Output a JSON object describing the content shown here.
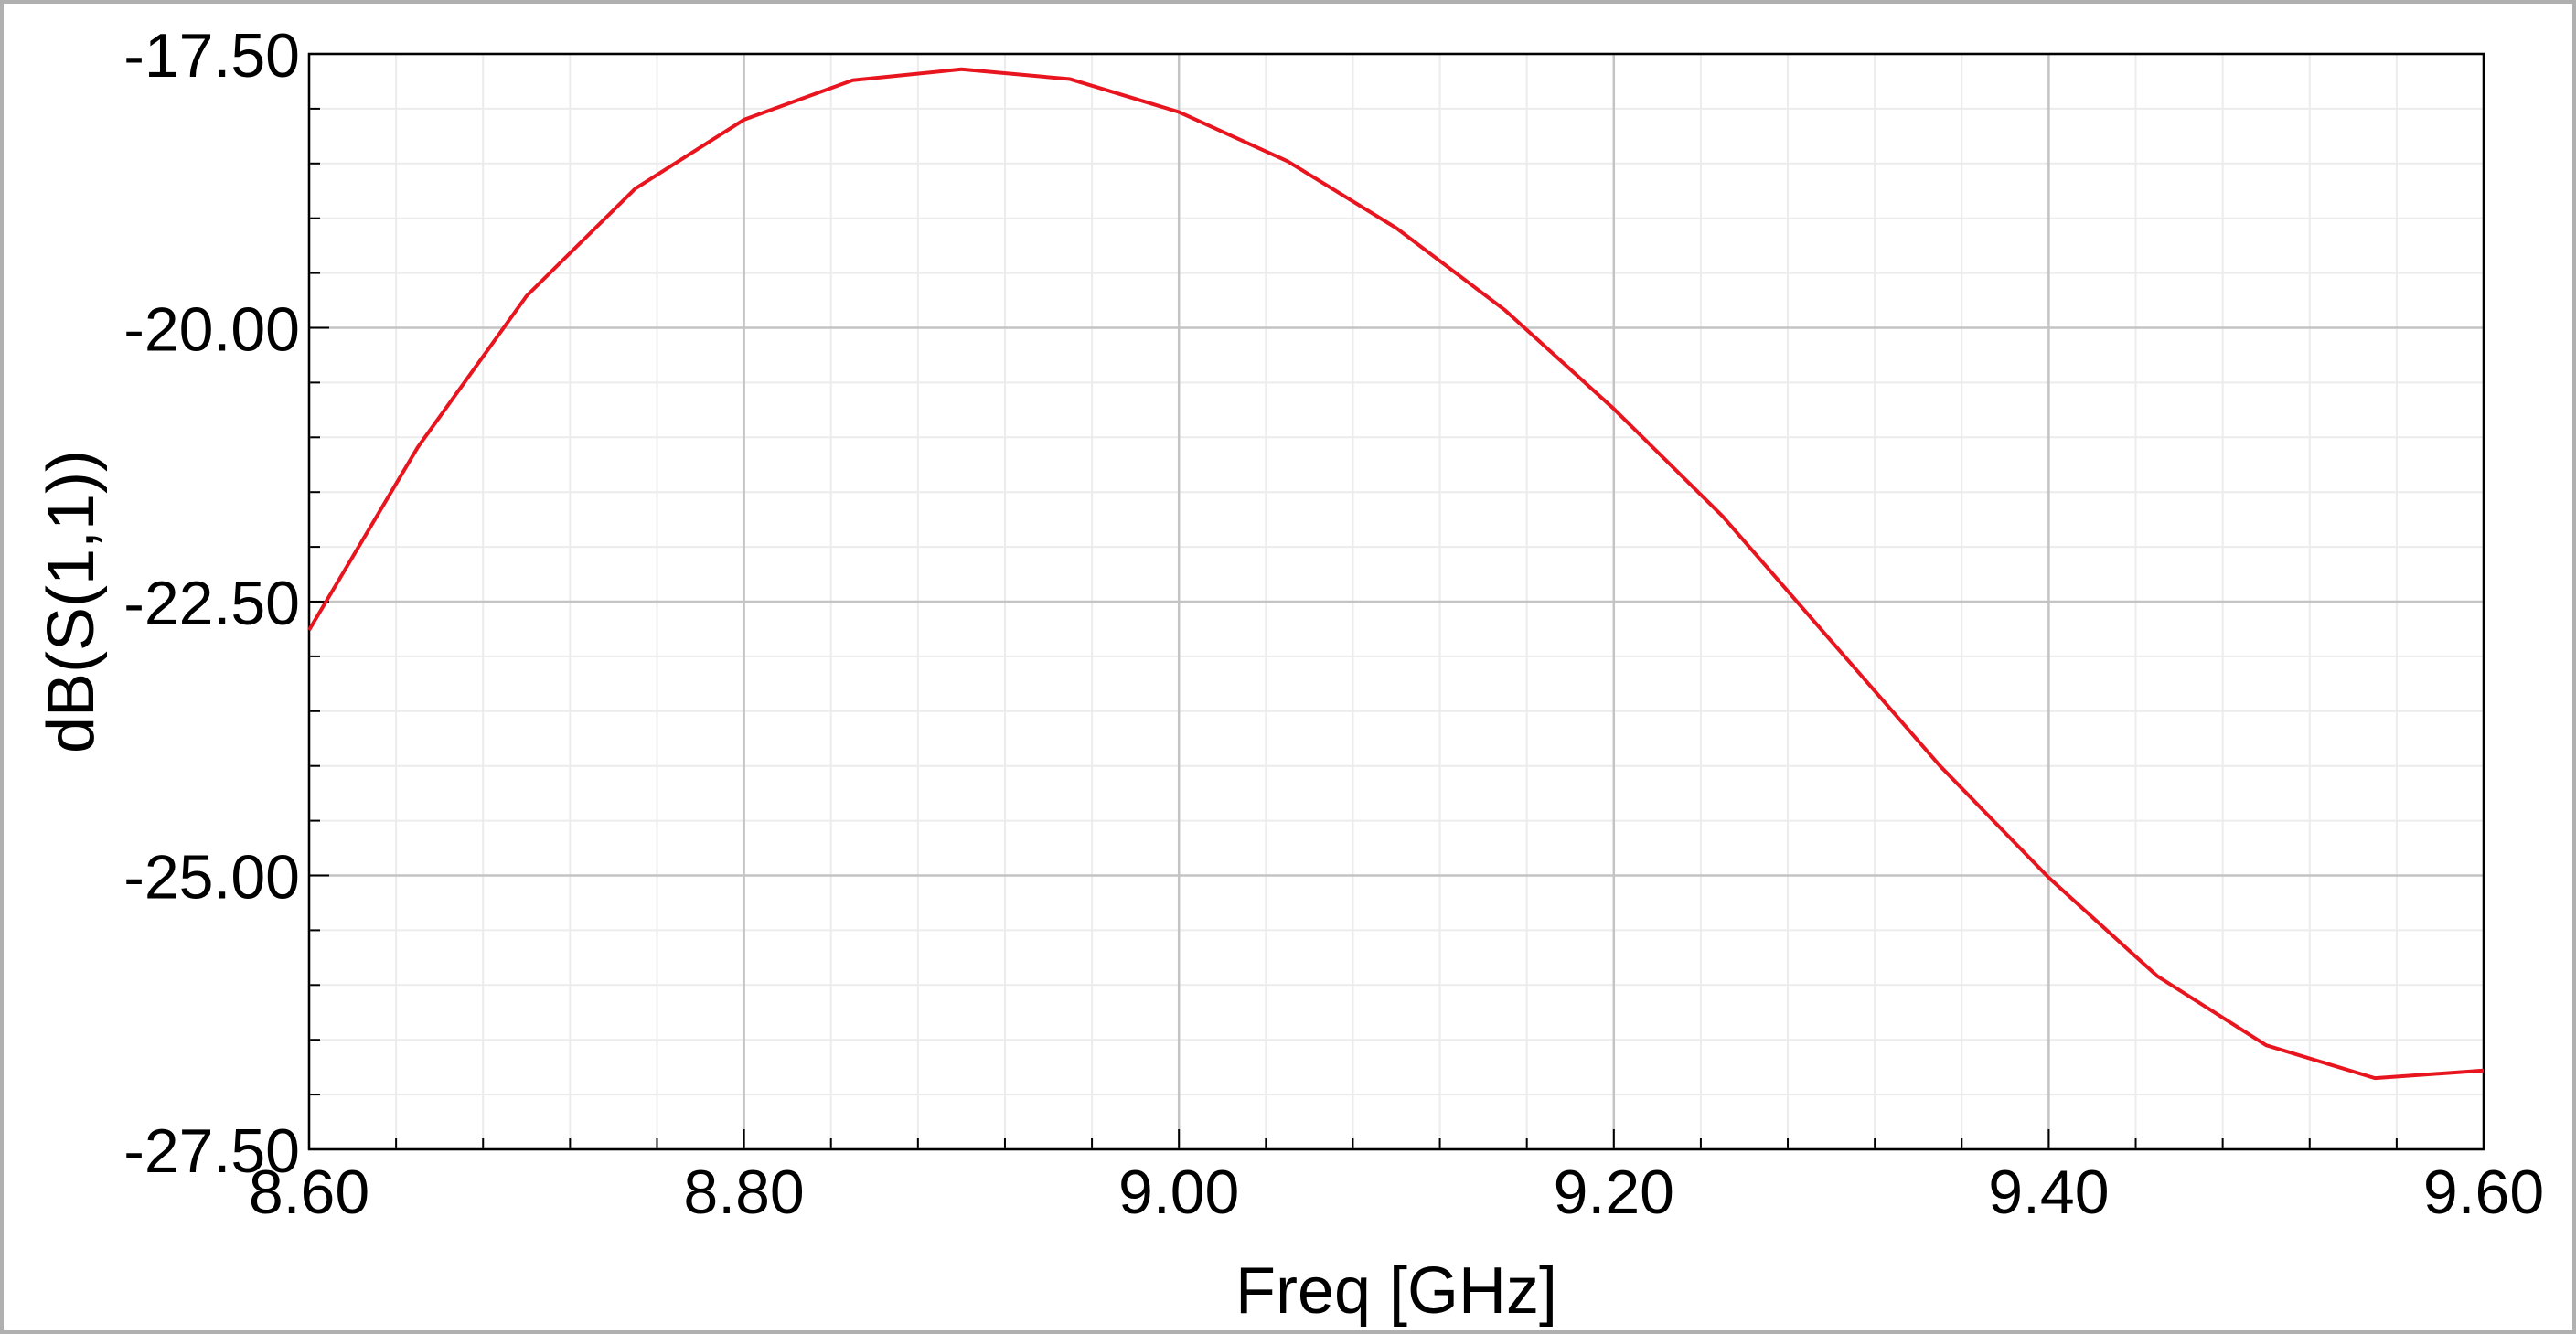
{
  "chart_data": {
    "type": "line",
    "x_label": "Freq [GHz]",
    "y_label": "dB(S(1,1))",
    "x": [
      8.6,
      8.65,
      8.7,
      8.75,
      8.8,
      8.85,
      8.9,
      8.95,
      9.0,
      9.05,
      9.1,
      9.15,
      9.2,
      9.25,
      9.3,
      9.35,
      9.4,
      9.45,
      9.5,
      9.55,
      9.6
    ],
    "series": [
      {
        "name": "dB(S(1,1))",
        "color": "#e8141e",
        "values": [
          -22.76,
          -21.09,
          -19.71,
          -18.73,
          -18.1,
          -17.74,
          -17.64,
          -17.73,
          -18.03,
          -18.48,
          -19.09,
          -19.84,
          -20.74,
          -21.72,
          -22.86,
          -24.0,
          -25.02,
          -25.92,
          -26.55,
          -26.85,
          -26.78
        ]
      }
    ],
    "xlim": [
      8.6,
      9.6
    ],
    "ylim": [
      -27.5,
      -17.5
    ],
    "xticks": [
      {
        "value": 8.6,
        "label": "8.60"
      },
      {
        "value": 8.8,
        "label": "8.80"
      },
      {
        "value": 9.0,
        "label": "9.00"
      },
      {
        "value": 9.2,
        "label": "9.20"
      },
      {
        "value": 9.4,
        "label": "9.40"
      },
      {
        "value": 9.6,
        "label": "9.60"
      }
    ],
    "yticks": [
      {
        "value": -27.5,
        "label": "-27.50"
      },
      {
        "value": -25.0,
        "label": "-25.00"
      },
      {
        "value": -22.5,
        "label": "-22.50"
      },
      {
        "value": -20.0,
        "label": "-20.00"
      },
      {
        "value": -17.5,
        "label": "-17.50"
      }
    ],
    "grid": true
  }
}
